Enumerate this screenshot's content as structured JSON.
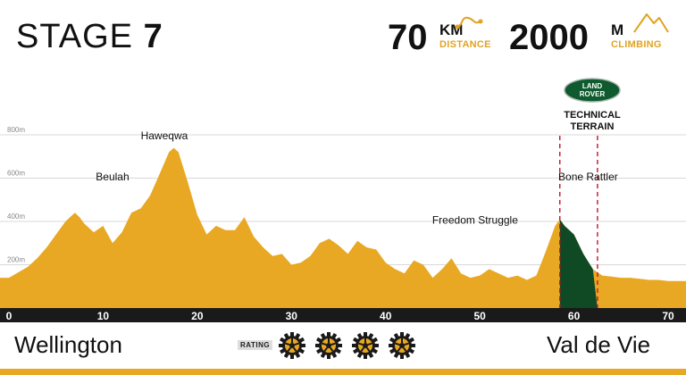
{
  "header": {
    "stage_label": "STAGE",
    "stage_number": "7",
    "distance_value": "70",
    "distance_unit": "KM",
    "distance_label": "DISTANCE",
    "climbing_value": "2000",
    "climbing_unit": "M",
    "climbing_label": "CLIMBING"
  },
  "sponsor": {
    "logo_text_1": "LAND",
    "logo_text_2": "ROVER",
    "zone_label_1": "TECHNICAL",
    "zone_label_2": "TERRAIN"
  },
  "footer": {
    "start": "Wellington",
    "finish": "Val de Vie",
    "rating_label": "RATING",
    "rating_value": 4
  },
  "colors": {
    "profile": "#e8a823",
    "technical": "#0f4a24",
    "axis_bar": "#1a1a1a",
    "accent": "#e0a322",
    "marker": "#c8102e"
  },
  "chart_data": {
    "type": "area",
    "xlabel": "",
    "ylabel": "",
    "xlim": [
      0,
      70
    ],
    "ylim": [
      0,
      900
    ],
    "x_ticks": [
      "0",
      "10",
      "20",
      "30",
      "40",
      "50",
      "60",
      "70"
    ],
    "y_ticks": [
      "200m",
      "400m",
      "600m",
      "800m"
    ],
    "series": [
      {
        "x": [
          0,
          1,
          2,
          3,
          4,
          5,
          6,
          7,
          7.5,
          8,
          9,
          10,
          11,
          12,
          13,
          14,
          15,
          16,
          17,
          17.5,
          18,
          19,
          20,
          21,
          22,
          23,
          24,
          25,
          26,
          27,
          28,
          29,
          30,
          31,
          32,
          33,
          34,
          35,
          36,
          37,
          38,
          39,
          40,
          41,
          42,
          43,
          44,
          45,
          46,
          47,
          48,
          49,
          50,
          51,
          52,
          53,
          54,
          55,
          56,
          57,
          58,
          58.5,
          59,
          60,
          61,
          62,
          63,
          64,
          65,
          66,
          67,
          68,
          69,
          70
        ],
        "values": [
          140,
          165,
          190,
          230,
          280,
          340,
          400,
          440,
          420,
          390,
          350,
          380,
          300,
          350,
          440,
          460,
          520,
          620,
          720,
          740,
          720,
          580,
          430,
          340,
          380,
          360,
          360,
          420,
          330,
          280,
          240,
          250,
          200,
          210,
          240,
          300,
          320,
          290,
          250,
          310,
          280,
          270,
          210,
          180,
          160,
          220,
          200,
          140,
          180,
          230,
          160,
          140,
          150,
          180,
          160,
          140,
          150,
          130,
          150,
          260,
          380,
          410,
          380,
          340,
          250,
          180,
          150,
          145,
          140,
          140,
          135,
          130,
          130,
          125
        ]
      }
    ],
    "shaded_range": {
      "label": "TECHNICAL TERRAIN",
      "x": [
        58.5,
        62.5
      ]
    },
    "annotations": [
      {
        "text": "Haweqwa",
        "x": 16.5,
        "y": 780
      },
      {
        "text": "Beulah",
        "x": 11,
        "y": 590
      },
      {
        "text": "Freedom Struggle",
        "x": 49.5,
        "y": 390
      },
      {
        "text": "Bone Rattler",
        "x": 61.5,
        "y": 590
      }
    ]
  }
}
